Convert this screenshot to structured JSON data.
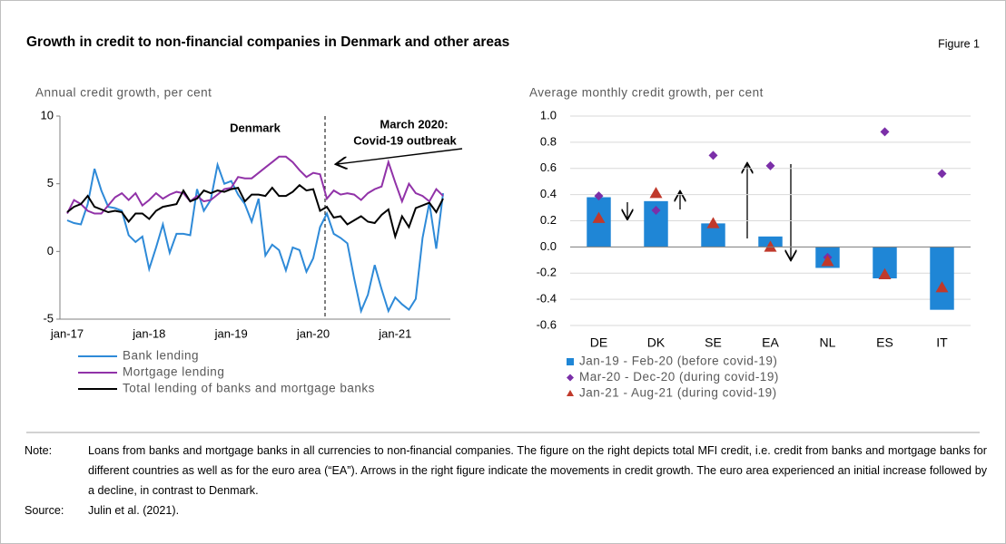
{
  "header": {
    "title": "Growth in credit to non-financial companies in Denmark and other areas",
    "figure": "Figure 1"
  },
  "chart_data": [
    {
      "type": "line",
      "y_label": "Annual credit growth, per cent",
      "annotations": [
        "Denmark",
        "March 2020:",
        "Covid-19 outbreak"
      ],
      "categories": [
        "jan-17",
        null,
        null,
        null,
        null,
        null,
        null,
        null,
        null,
        null,
        null,
        null,
        "jan-18",
        null,
        null,
        null,
        null,
        null,
        null,
        null,
        null,
        null,
        null,
        null,
        "jan-19",
        null,
        null,
        null,
        null,
        null,
        null,
        null,
        null,
        null,
        null,
        null,
        "jan-20",
        null,
        null,
        null,
        null,
        null,
        null,
        null,
        null,
        null,
        null,
        null,
        "jan-21",
        null,
        null,
        null,
        null,
        null,
        null,
        null
      ],
      "series": [
        {
          "name": "Bank lending",
          "color": "#2e8ad8",
          "values": [
            2.3,
            2.1,
            2.0,
            3.5,
            6.1,
            4.5,
            3.3,
            3.2,
            3.0,
            1.2,
            0.7,
            1.1,
            -1.3,
            0.3,
            2.0,
            -0.1,
            1.3,
            1.3,
            1.2,
            4.6,
            3.0,
            3.8,
            6.4,
            5.0,
            5.2,
            4.2,
            3.5,
            2.2,
            3.9,
            -0.3,
            0.5,
            0.1,
            -1.4,
            0.3,
            0.1,
            -1.5,
            -0.5,
            1.8,
            2.8,
            1.3,
            1.0,
            0.6,
            -2.0,
            -4.4,
            -3.2,
            -1.0,
            -2.8,
            -4.4,
            -3.4,
            -3.9,
            -4.3,
            -3.5,
            1.0,
            3.6,
            0.2,
            4.3
          ]
        },
        {
          "name": "Mortgage lending",
          "color": "#9132a8",
          "values": [
            2.8,
            3.8,
            3.5,
            3.0,
            2.8,
            2.8,
            3.4,
            4.0,
            4.3,
            3.8,
            4.3,
            3.4,
            3.8,
            4.3,
            3.9,
            4.2,
            4.4,
            4.3,
            3.7,
            4.1,
            3.7,
            3.8,
            4.2,
            4.6,
            4.7,
            5.5,
            5.4,
            5.4,
            5.8,
            6.2,
            6.6,
            7.0,
            7.0,
            6.6,
            6.0,
            5.5,
            5.8,
            5.7,
            3.9,
            4.5,
            4.2,
            4.3,
            4.2,
            3.8,
            4.3,
            4.6,
            4.8,
            6.6,
            5.1,
            3.7,
            5.0,
            4.3,
            4.1,
            3.7,
            4.6,
            4.1
          ]
        },
        {
          "name": "Total lending of banks and mortgage banks",
          "color": "#000000",
          "values": [
            2.9,
            3.3,
            3.5,
            4.1,
            3.3,
            3.1,
            2.9,
            3.0,
            2.9,
            2.2,
            2.8,
            2.8,
            2.4,
            3.0,
            3.3,
            3.4,
            3.5,
            4.5,
            3.7,
            3.9,
            4.5,
            4.3,
            4.5,
            4.4,
            4.6,
            4.7,
            3.7,
            4.2,
            4.2,
            4.1,
            4.7,
            4.1,
            4.1,
            4.4,
            4.9,
            4.5,
            4.6,
            3.0,
            3.3,
            2.5,
            2.6,
            2.0,
            2.3,
            2.6,
            2.2,
            2.1,
            2.7,
            3.1,
            1.1,
            2.6,
            1.8,
            3.2,
            3.4,
            3.6,
            2.9,
            3.9
          ]
        }
      ],
      "ylim": [
        -5,
        10
      ],
      "yticks": [
        -5,
        0,
        5,
        10
      ],
      "grid": false
    },
    {
      "type": "bar",
      "y_label": "Average monthly credit growth, per cent",
      "categories": [
        "DE",
        "DK",
        "SE",
        "EA",
        "NL",
        "ES",
        "IT"
      ],
      "series": [
        {
          "name": "Jan-19 - Feb-20 (before covid-19)",
          "marker": "bar",
          "color": "#1f86d6",
          "values": [
            0.38,
            0.35,
            0.18,
            0.08,
            -0.16,
            -0.24,
            -0.48
          ]
        },
        {
          "name": "Mar-20 - Dec-20 (during covid-19)",
          "marker": "diamond",
          "color": "#7b2fa8",
          "values": [
            0.39,
            0.28,
            0.7,
            0.62,
            -0.08,
            0.88,
            0.56
          ]
        },
        {
          "name": "Jan-21 - Aug-21 (during covid-19)",
          "marker": "triangle",
          "color": "#c0392b",
          "values": [
            0.22,
            0.41,
            0.18,
            0.0,
            -0.11,
            -0.21,
            -0.31
          ]
        }
      ],
      "ylim": [
        -0.6,
        1.0
      ],
      "yticks": [
        {
          "value": 1.0,
          "label": "1.0"
        },
        0.8,
        0.6,
        0.4,
        0.2,
        {
          "value": 0,
          "label": "0.0"
        },
        -0.2,
        -0.4,
        -0.6
      ],
      "grid": true
    }
  ],
  "note": {
    "label": "Note:",
    "text": "Loans from banks and mortgage banks in all currencies to non-financial companies. The figure on the right depicts total MFI credit, i.e. credit from banks and mortgage banks for different countries as well as for the euro area (“EA”). Arrows in the right figure indicate the movements in credit growth. The euro area experienced an initial increase followed by a decline, in contrast to Denmark."
  },
  "source": {
    "label": "Source:",
    "text": "Julin et al. (2021)."
  }
}
